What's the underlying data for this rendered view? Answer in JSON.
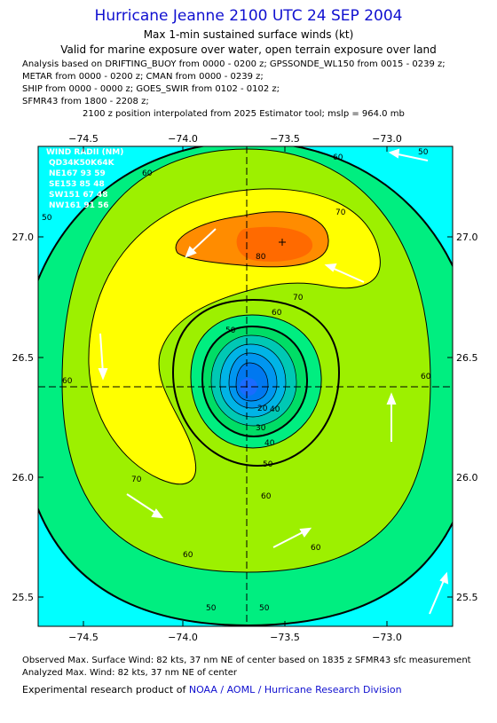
{
  "header": {
    "title": "Hurricane Jeanne 2100 UTC 24 SEP 2004",
    "subtitle": "Max 1-min sustained surface winds (kt)",
    "subtitle2": "Valid for marine exposure over water, open terrain exposure over land",
    "notes": [
      "Analysis based on  DRIFTING_BUOY from 0000 - 0200 z;  GPSSONDE_WL150 from 0015 - 0239 z;",
      "METAR from 0000 - 0200 z;  CMAN from 0000 - 0239 z;",
      "SHIP from 0000 - 0000 z;  GOES_SWIR from 0102 - 0102 z;",
      "SFMR43 from 1800 - 2208 z;",
      "2100 z position interpolated from 2025 Estimator tool; mslp = 964.0 mb"
    ]
  },
  "map": {
    "lon_labels": [
      "−74.5",
      "−74.0",
      "−73.5",
      "−73.0"
    ],
    "lat_labels": [
      "27.0",
      "26.5",
      "26.0",
      "25.5"
    ],
    "contour_labels": [
      "60",
      "70",
      "80",
      "70",
      "60",
      "50",
      "40",
      "30",
      "20",
      "40",
      "50",
      "60",
      "70",
      "60",
      "50",
      "60",
      "60",
      "50",
      "50",
      "60",
      "60",
      "50"
    ],
    "wind_radii": {
      "title": "WIND RADII (NM)",
      "header": "QD34K50K64K",
      "rows": [
        "NE167 93 59",
        "SE153 85 48",
        "SW151 67 48",
        "NW161 91 56"
      ]
    },
    "colors": {
      "c_lt50": "#00ffff",
      "c50": "#00ee80",
      "c60": "#9df000",
      "c70": "#ffff00",
      "c80": "#ff8c00",
      "c_inner": "#1a6bff"
    }
  },
  "footer": {
    "line1": "Observed Max. Surface Wind: 82 kts, 37 nm NE of center based on 1835 z SFMR43 sfc measurement",
    "line2": "Analyzed Max. Wind: 82 kts, 37 nm NE of center",
    "line3_prefix": "Experimental research product of ",
    "line3_org": "NOAA / AOML / Hurricane Research Division"
  }
}
